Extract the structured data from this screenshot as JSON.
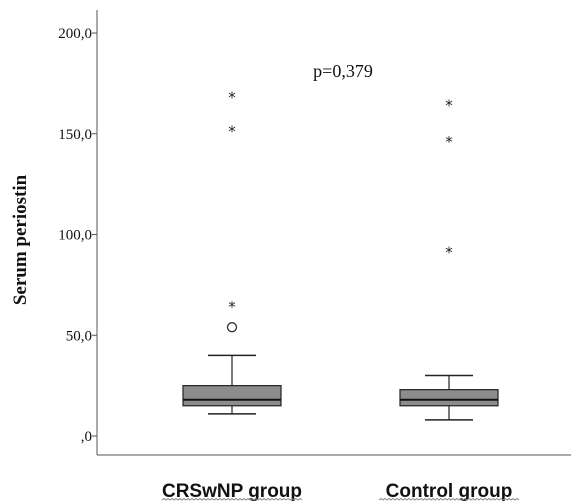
{
  "chart_data": {
    "type": "boxplot",
    "ylabel": "Serum periostin",
    "ylim": [
      0,
      200
    ],
    "y_ticks": [
      0,
      50,
      100,
      150,
      200
    ],
    "y_tick_labels": [
      ",0",
      "50,0",
      "100,0",
      "150,0",
      "200,0"
    ],
    "categories": [
      "CRSwNP group",
      "Control group"
    ],
    "annotation": "p=0,379",
    "box_color": "#8c8c8c",
    "groups": [
      {
        "name": "CRSwNP group",
        "whisker_low": 11,
        "q1": 15,
        "median": 18,
        "q3": 25,
        "whisker_high": 40,
        "outliers_circle": [
          54
        ],
        "outliers_extreme": [
          65,
          152,
          169
        ]
      },
      {
        "name": "Control group",
        "whisker_low": 8,
        "q1": 15,
        "median": 18,
        "q3": 23,
        "whisker_high": 30,
        "outliers_circle": [],
        "outliers_extreme": [
          92,
          147,
          165
        ]
      }
    ]
  }
}
